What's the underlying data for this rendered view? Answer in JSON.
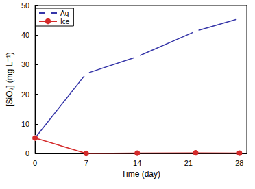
{
  "chart_data": {
    "type": "line",
    "x_label": "Time (day)",
    "y_label": "[SiO₂] (mg L⁻¹)",
    "xlim": [
      0,
      29
    ],
    "xticks": [
      0,
      7,
      14,
      21,
      28
    ],
    "ylim": [
      0,
      50
    ],
    "yticks": [
      0,
      10,
      20,
      30,
      40,
      50
    ],
    "grid": false,
    "legend": "upper left",
    "series": [
      {
        "name": "Aq",
        "color": "#3535a8",
        "marker": "open_circle",
        "x": [
          0,
          7,
          14,
          22,
          28
        ],
        "values": [
          5.2,
          27.0,
          32.7,
          41.3,
          45.6
        ]
      },
      {
        "name": "Ice",
        "color": "#d42a2a",
        "marker": "circle",
        "x": [
          0,
          7,
          14,
          22,
          28
        ],
        "values": [
          5.2,
          0.0,
          0.1,
          0.2,
          0.1
        ]
      }
    ]
  }
}
